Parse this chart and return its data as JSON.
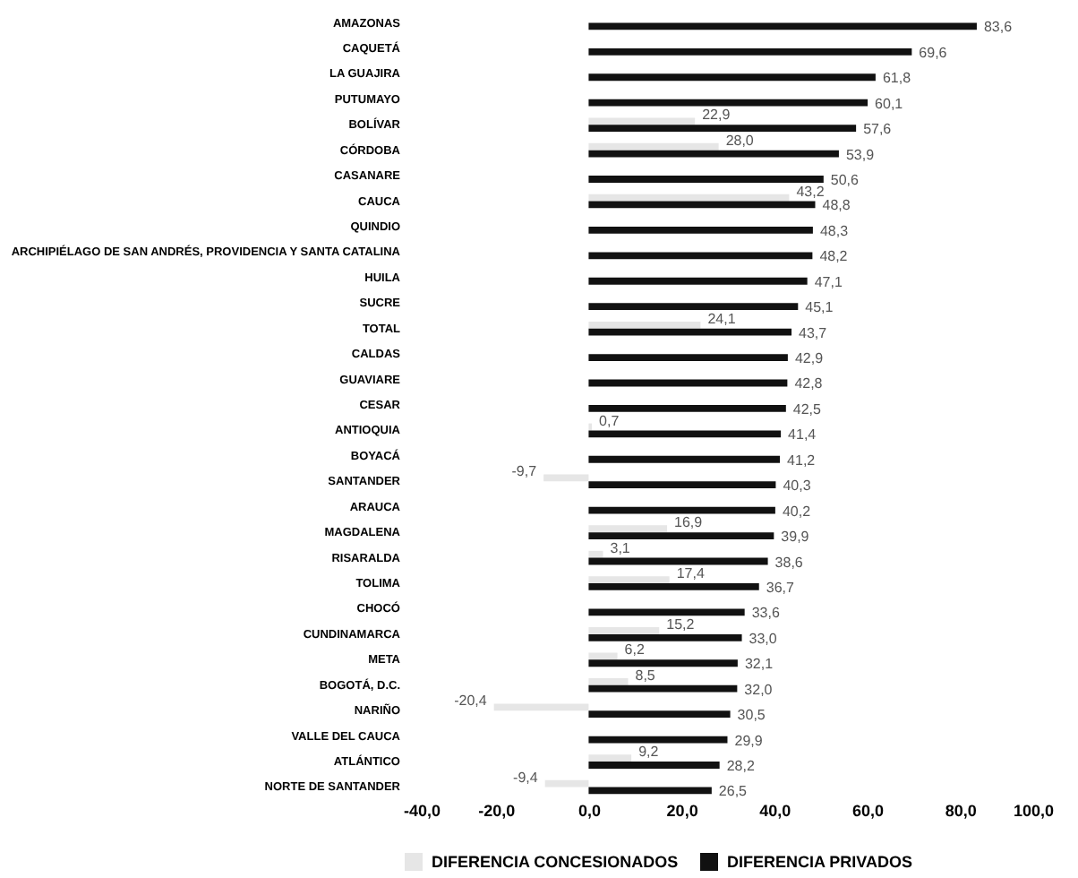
{
  "chart_data": {
    "type": "bar",
    "orientation": "horizontal",
    "categories": [
      "AMAZONAS",
      "CAQUETÁ",
      "LA GUAJIRA",
      "PUTUMAYO",
      "BOLÍVAR",
      "CÓRDOBA",
      "CASANARE",
      "CAUCA",
      "QUINDIO",
      "ARCHIPIÉLAGO DE SAN ANDRÉS, PROVIDENCIA Y SANTA CATALINA",
      "HUILA",
      "SUCRE",
      "TOTAL",
      "CALDAS",
      "GUAVIARE",
      "CESAR",
      "ANTIOQUIA",
      "BOYACÁ",
      "SANTANDER",
      "ARAUCA",
      "MAGDALENA",
      "RISARALDA",
      "TOLIMA",
      "CHOCÓ",
      "CUNDINAMARCA",
      "META",
      "BOGOTÁ, D.C.",
      "NARIÑO",
      "VALLE DEL CAUCA",
      "ATLÁNTICO",
      "NORTE DE SANTANDER"
    ],
    "series": [
      {
        "name": "DIFERENCIA CONCESIONADOS",
        "color": "#e6e6e6",
        "values": [
          null,
          null,
          null,
          null,
          22.9,
          28.0,
          null,
          43.2,
          null,
          null,
          null,
          null,
          24.1,
          null,
          null,
          null,
          0.7,
          null,
          -9.7,
          null,
          16.9,
          3.1,
          17.4,
          null,
          15.2,
          6.2,
          8.5,
          -20.4,
          null,
          9.2,
          -9.4
        ],
        "value_labels": [
          null,
          null,
          null,
          null,
          "22,9",
          "28,0",
          null,
          "43,2",
          null,
          null,
          null,
          null,
          "24,1",
          null,
          null,
          null,
          "0,7",
          null,
          "-9,7",
          null,
          "16,9",
          "3,1",
          "17,4",
          null,
          "15,2",
          "6,2",
          "8,5",
          "-20,4",
          null,
          "9,2",
          "-9,4"
        ]
      },
      {
        "name": "DIFERENCIA  PRIVADOS",
        "color": "#111111",
        "values": [
          83.6,
          69.6,
          61.8,
          60.1,
          57.6,
          53.9,
          50.6,
          48.8,
          48.3,
          48.2,
          47.1,
          45.1,
          43.7,
          42.9,
          42.8,
          42.5,
          41.4,
          41.2,
          40.3,
          40.2,
          39.9,
          38.6,
          36.7,
          33.6,
          33.0,
          32.1,
          32.0,
          30.5,
          29.9,
          28.2,
          26.5
        ],
        "value_labels": [
          "83,6",
          "69,6",
          "61,8",
          "60,1",
          "57,6",
          "53,9",
          "50,6",
          "48,8",
          "48,3",
          "48,2",
          "47,1",
          "45,1",
          "43,7",
          "42,9",
          "42,8",
          "42,5",
          "41,4",
          "41,2",
          "40,3",
          "40,2",
          "39,9",
          "38,6",
          "36,7",
          "33,6",
          "33,0",
          "32,1",
          "32,0",
          "30,5",
          "29,9",
          "28,2",
          "26,5"
        ]
      }
    ],
    "xlim": [
      -40,
      100
    ],
    "xticks": [
      {
        "value": -40,
        "label": "-40,0"
      },
      {
        "value": -20,
        "label": "-20,0"
      },
      {
        "value": 0,
        "label": "0,0"
      },
      {
        "value": 20,
        "label": "20,0"
      },
      {
        "value": 40,
        "label": "40,0"
      },
      {
        "value": 60,
        "label": "60,0"
      },
      {
        "value": 80,
        "label": "80,0"
      },
      {
        "value": 100,
        "label": "100,0"
      }
    ],
    "grid": false,
    "legend": "bottom"
  }
}
